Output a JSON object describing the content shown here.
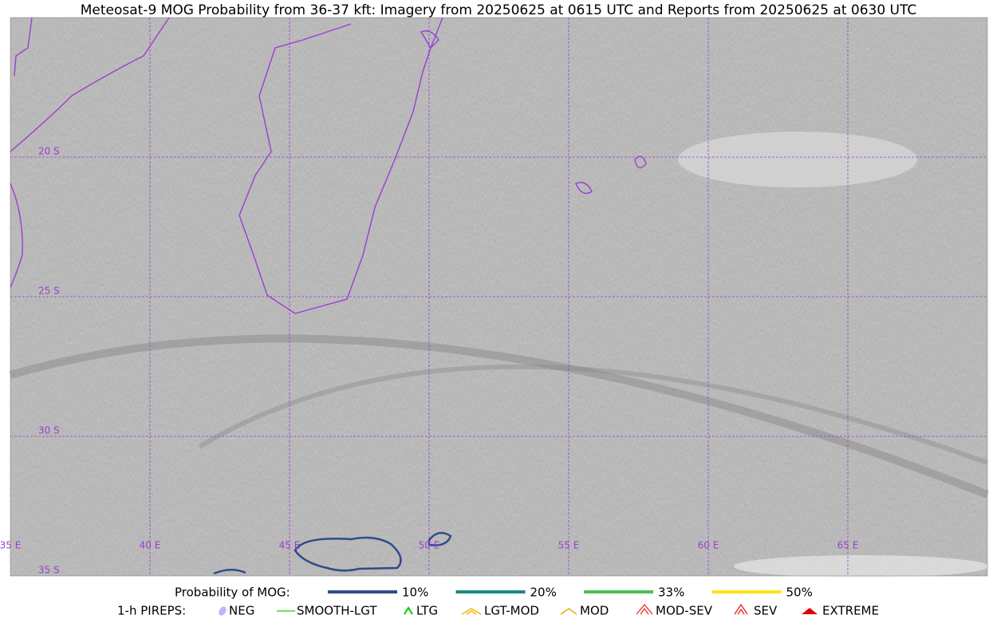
{
  "title": "Meteosat-9 MOG Probability from 36-37 kft: Imagery from 20250625 at 0615 UTC and Reports from 20250625 at 0630 UTC",
  "map": {
    "lon_labels": [
      "35 E",
      "40 E",
      "45 E",
      "50 E",
      "55 E",
      "60 E",
      "65 E"
    ],
    "lat_labels": [
      "20 S",
      "25 S",
      "30 S",
      "35 S"
    ]
  },
  "legend": {
    "probability": {
      "label": "Probability of MOG:",
      "items": [
        {
          "label": "10%",
          "color": "#2f4b8c"
        },
        {
          "label": "20%",
          "color": "#1a8a80"
        },
        {
          "label": "33%",
          "color": "#4cc057"
        },
        {
          "label": "50%",
          "color": "#ffe11a"
        }
      ]
    },
    "pireps": {
      "label": "1-h PIREPS:",
      "items": [
        {
          "label": "NEG",
          "color": "#b8b8ff"
        },
        {
          "label": "SMOOTH-LGT",
          "color": "#33dd33"
        },
        {
          "label": "LTG",
          "color": "#00cc00"
        },
        {
          "label": "LGT-MOD",
          "color": "#f5b400"
        },
        {
          "label": "MOD",
          "color": "#f5a800"
        },
        {
          "label": "MOD-SEV",
          "color": "#e83030"
        },
        {
          "label": "SEV",
          "color": "#e82020"
        },
        {
          "label": "EXTREME",
          "color": "#e00000"
        }
      ]
    }
  }
}
